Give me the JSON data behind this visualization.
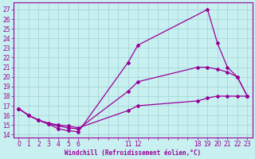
{
  "xlabel": "Windchill (Refroidissement éolien,°C)",
  "bg_color": "#c8f0f0",
  "line_color": "#990099",
  "grid_color": "#99cccc",
  "xlim": [
    -0.5,
    23.5
  ],
  "ylim": [
    13.7,
    27.7
  ],
  "xticks_major": [
    0,
    1,
    2,
    3,
    4,
    5,
    6,
    7,
    8,
    9,
    10,
    11,
    12,
    13,
    14,
    15,
    16,
    17,
    18,
    19,
    20,
    21,
    22,
    23
  ],
  "xtick_labels": {
    "0": "0",
    "1": "1",
    "2": "2",
    "3": "3",
    "4": "4",
    "5": "5",
    "6": "6",
    "7": "",
    "8": "",
    "9": "",
    "10": "",
    "11": "11",
    "12": "12",
    "13": "",
    "14": "",
    "15": "",
    "16": "",
    "17": "",
    "18": "18",
    "19": "19",
    "20": "20",
    "21": "21",
    "22": "22",
    "23": "23"
  },
  "yticks": [
    14,
    15,
    16,
    17,
    18,
    19,
    20,
    21,
    22,
    23,
    24,
    25,
    26,
    27
  ],
  "curves": [
    {
      "x": [
        0,
        1,
        2,
        3,
        4,
        5,
        6,
        11,
        12,
        19,
        20,
        21,
        22,
        23
      ],
      "y": [
        16.7,
        16.0,
        15.5,
        15.1,
        14.6,
        14.4,
        14.3,
        21.5,
        23.3,
        27.0,
        23.5,
        21.0,
        20.0,
        18.0
      ]
    },
    {
      "x": [
        0,
        1,
        2,
        3,
        4,
        5,
        6,
        11,
        12,
        18,
        19,
        20,
        21,
        22,
        23
      ],
      "y": [
        16.7,
        16.0,
        15.5,
        15.1,
        14.9,
        14.7,
        14.6,
        18.5,
        19.5,
        21.0,
        21.0,
        20.8,
        20.5,
        20.0,
        18.0
      ]
    },
    {
      "x": [
        0,
        1,
        2,
        3,
        4,
        5,
        6,
        11,
        12,
        18,
        19,
        20,
        21,
        22,
        23
      ],
      "y": [
        16.7,
        16.0,
        15.5,
        15.2,
        15.0,
        14.9,
        14.7,
        16.5,
        17.0,
        17.5,
        17.8,
        18.0,
        18.0,
        18.0,
        18.0
      ]
    }
  ]
}
